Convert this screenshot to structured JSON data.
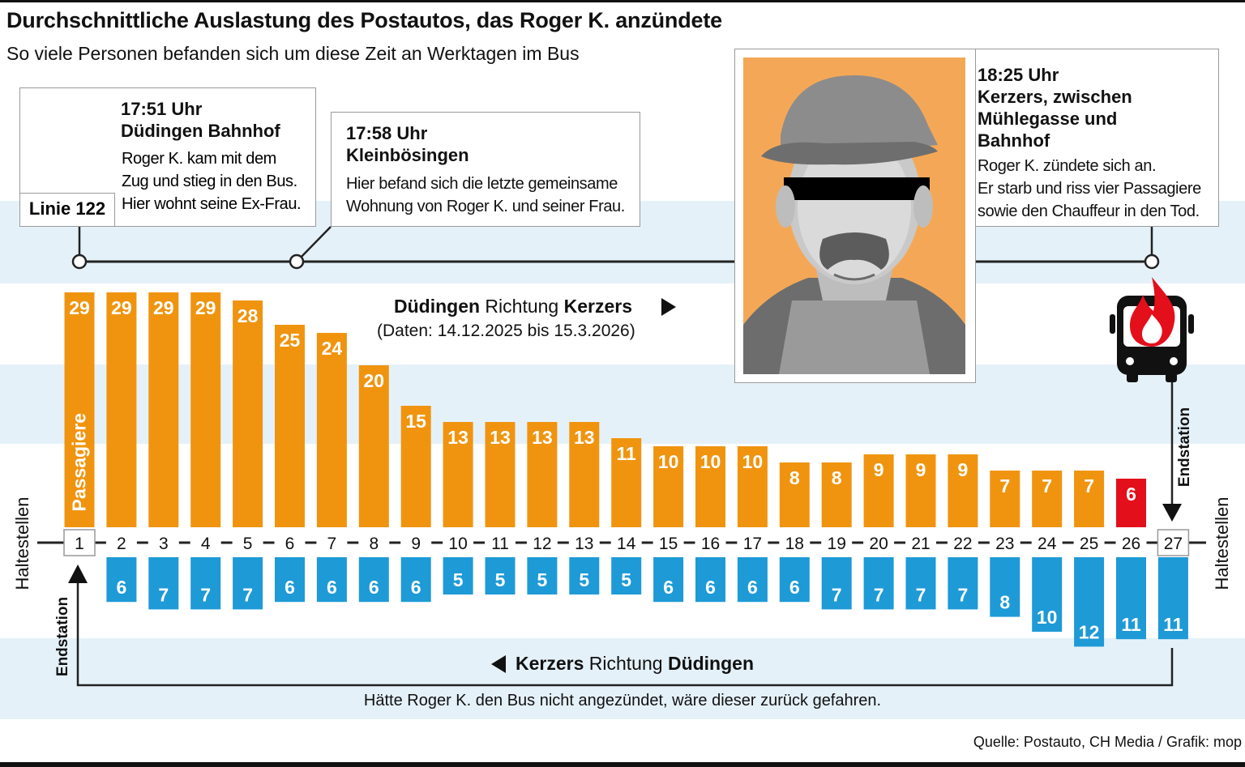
{
  "title": "Durchschnittliche Auslastung des Postautos, das Roger K. anzündete",
  "subtitle": "So viele Personen befanden sich um diese Zeit an Werktagen im Bus",
  "chart_data": {
    "type": "bar",
    "title": "Durchschnittliche Auslastung des Postautos, das Roger K. anzündete",
    "xlabel": "Haltestellen",
    "ylabel": "Passagiere",
    "categories": [
      "1",
      "2",
      "3",
      "4",
      "5",
      "6",
      "7",
      "8",
      "9",
      "10",
      "11",
      "12",
      "13",
      "14",
      "15",
      "16",
      "17",
      "18",
      "19",
      "20",
      "21",
      "22",
      "23",
      "24",
      "25",
      "26",
      "27"
    ],
    "series": [
      {
        "name": "Düdingen Richtung Kerzers",
        "color": "#f0940f",
        "highlight_color": "#e30f1b",
        "values": [
          29,
          29,
          29,
          29,
          28,
          25,
          24,
          20,
          15,
          13,
          13,
          13,
          13,
          11,
          10,
          10,
          10,
          8,
          8,
          9,
          9,
          9,
          7,
          7,
          7,
          6,
          null
        ]
      },
      {
        "name": "Kerzers Richtung Düdingen",
        "color": "#1e9ad6",
        "values": [
          null,
          6,
          7,
          7,
          7,
          6,
          6,
          6,
          6,
          5,
          5,
          5,
          5,
          5,
          6,
          6,
          6,
          6,
          7,
          7,
          7,
          7,
          8,
          10,
          12,
          11,
          11
        ]
      }
    ],
    "highlight_index": 25
  },
  "labels": {
    "axis_left": "Haltestellen",
    "axis_right": "Haltestellen",
    "passagiere": "Passagiere",
    "endstation": "Endstation",
    "dir_forward_a": "Düdingen",
    "dir_forward_b": " Richtung ",
    "dir_forward_c": "Kerzers",
    "dir_forward_sub": "(Daten: 14.12.2025 bis 15.3.2026)",
    "dir_back_a": "Kerzers",
    "dir_back_b": " Richtung ",
    "dir_back_c": "Düdingen",
    "note": "Hätte Roger K. den Bus nicht angezündet, wäre dieser zurück gefahren.",
    "source": "Quelle: Postauto, CH Media / Grafik: mop",
    "linie": "Linie 122"
  },
  "events": [
    {
      "time": "17:51 Uhr",
      "place": "Düdingen Bahnhof",
      "lines": [
        "Roger K. kam mit dem",
        "Zug und stieg in den Bus.",
        "Hier wohnt seine Ex-Frau."
      ]
    },
    {
      "time": "17:58 Uhr",
      "place": "Kleinbösingen",
      "lines": [
        "Hier befand sich die letzte gemeinsame",
        "Wohnung von Roger K. und seiner Frau."
      ]
    },
    {
      "time": "18:25 Uhr",
      "place_lines": [
        "Kerzers, zwischen",
        "Mühlegasse und",
        "Bahnhof"
      ],
      "lines": [
        "Roger K. zündete sich an.",
        "Er starb und riss vier Passagiere",
        "sowie den Chauffeur in den Tod."
      ]
    }
  ],
  "icons": {
    "bus": "bus-icon",
    "bus_fire": "bus-fire-icon",
    "portrait": "portrait-illustration"
  }
}
